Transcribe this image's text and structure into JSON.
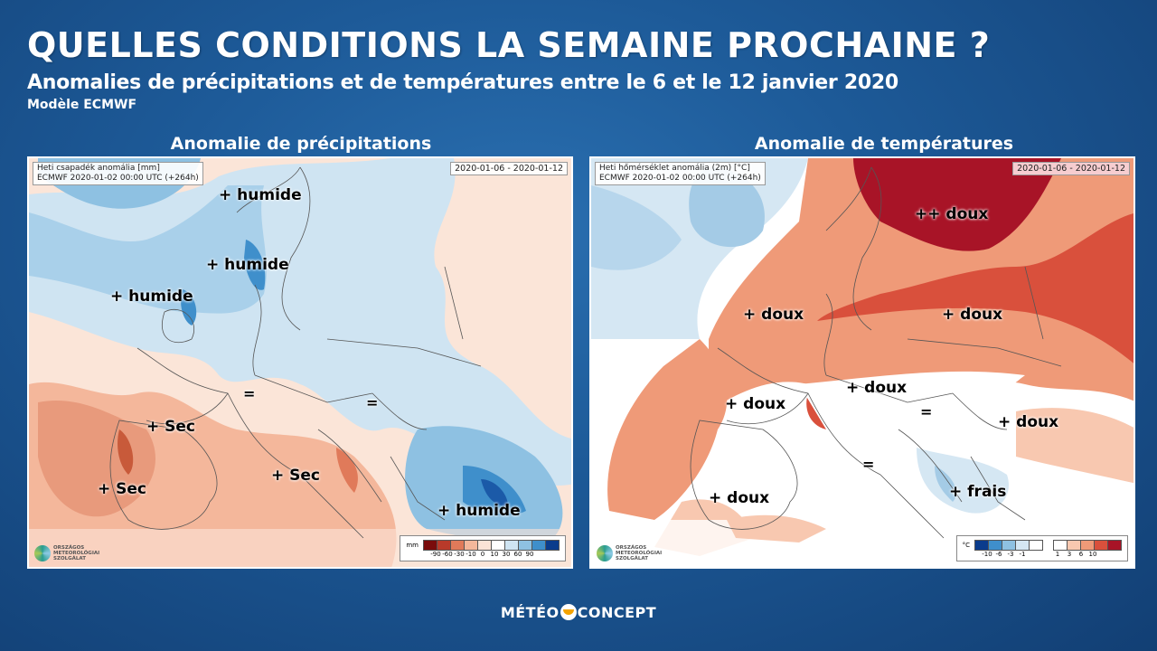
{
  "header": {
    "title": "QUELLES CONDITIONS LA SEMAINE PROCHAINE ?",
    "subtitle": "Anomalies de précipitations et de températures entre le 6 et le 12 janvier 2020",
    "model": "Modèle ECMWF"
  },
  "precip": {
    "panel_title": "Anomalie de précipitations",
    "info_line1": "Heti csapadék anomália [mm]",
    "info_line2": "ECMWF 2020-01-02 00:00 UTC (+264h)",
    "date_range": "2020-01-06 - 2020-01-12",
    "legend_unit": "mm",
    "legend_ticks": [
      "-90",
      "-60",
      "-30",
      "-10",
      "0",
      "10",
      "30",
      "60",
      "90"
    ],
    "legend_colors": [
      "#7a0c0c",
      "#b83a2a",
      "#e07a5a",
      "#f4b79b",
      "#fbe3d6",
      "#ffffff",
      "#cfe4f2",
      "#8ec1e2",
      "#3f8fcb",
      "#0b3c8c"
    ],
    "labels": [
      {
        "text": "+ humide"
      },
      {
        "text": "+ humide"
      },
      {
        "text": "+ humide"
      },
      {
        "text": "+ Sec"
      },
      {
        "text": "+ Sec"
      },
      {
        "text": "+ Sec"
      },
      {
        "text": "="
      },
      {
        "text": "="
      },
      {
        "text": "+ humide"
      }
    ]
  },
  "temp": {
    "panel_title": "Anomalie de températures",
    "info_line1": "Heti hőmérséklet anomália (2m) [°C]",
    "info_line2": "ECMWF 2020-01-02 00:00 UTC (+264h)",
    "date_range": "2020-01-06 - 2020-01-12",
    "legend_unit": "°C",
    "legend_cold_ticks": [
      "-10",
      "-6",
      "-3",
      "-1"
    ],
    "legend_warm_ticks": [
      "1",
      "3",
      "6",
      "10"
    ],
    "legend_cold_colors": [
      "#0b3c8c",
      "#3f8fcb",
      "#8ec1e2",
      "#d5e7f3",
      "#ffffff"
    ],
    "legend_warm_colors": [
      "#ffffff",
      "#f8c8b0",
      "#ef9a78",
      "#d9503c",
      "#a81427"
    ],
    "labels": [
      {
        "text": "++ doux"
      },
      {
        "text": "+ doux"
      },
      {
        "text": "+ doux"
      },
      {
        "text": "+ doux"
      },
      {
        "text": "+ doux"
      },
      {
        "text": "+ doux"
      },
      {
        "text": "+ doux"
      },
      {
        "text": "="
      },
      {
        "text": "="
      },
      {
        "text": "+ frais"
      }
    ]
  },
  "source_logo_text": [
    "ORSZÁGOS",
    "METEOROLÓGIAI",
    "SZOLGÁLAT"
  ],
  "brand": {
    "left": "MÉTÉO",
    "right": "CONCEPT"
  }
}
